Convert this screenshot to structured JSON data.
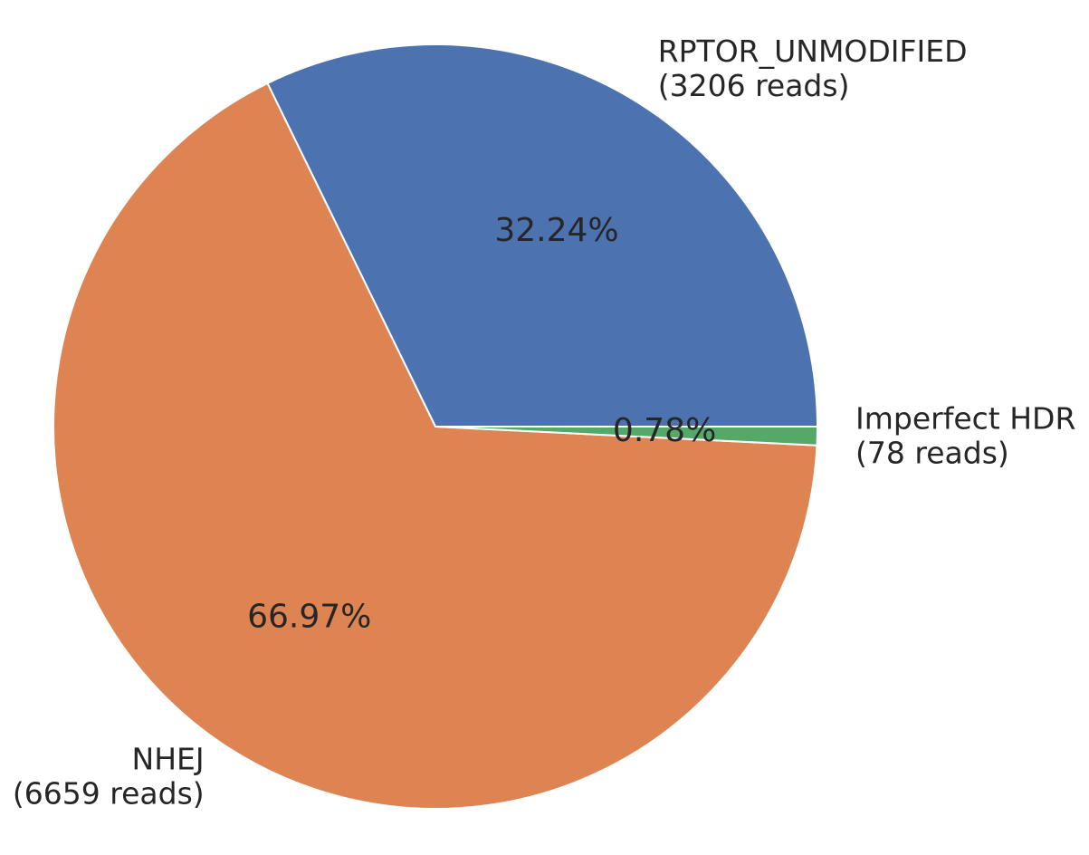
{
  "chart_data": {
    "type": "pie",
    "start_angle_deg": 0,
    "direction": "counterclockwise",
    "slices": [
      {
        "label": "RPTOR_UNMODIFIED",
        "reads_text": "(3206 reads)",
        "value": 3206,
        "percent_text": "32.24%",
        "color": "#4c72b0"
      },
      {
        "label": "NHEJ",
        "reads_text": "(6659 reads)",
        "value": 6659,
        "percent_text": "66.97%",
        "color": "#dd8452"
      },
      {
        "label": "Imperfect HDR",
        "reads_text": "(78 reads)",
        "value": 78,
        "percent_text": "0.78%",
        "color": "#55a868"
      }
    ]
  }
}
